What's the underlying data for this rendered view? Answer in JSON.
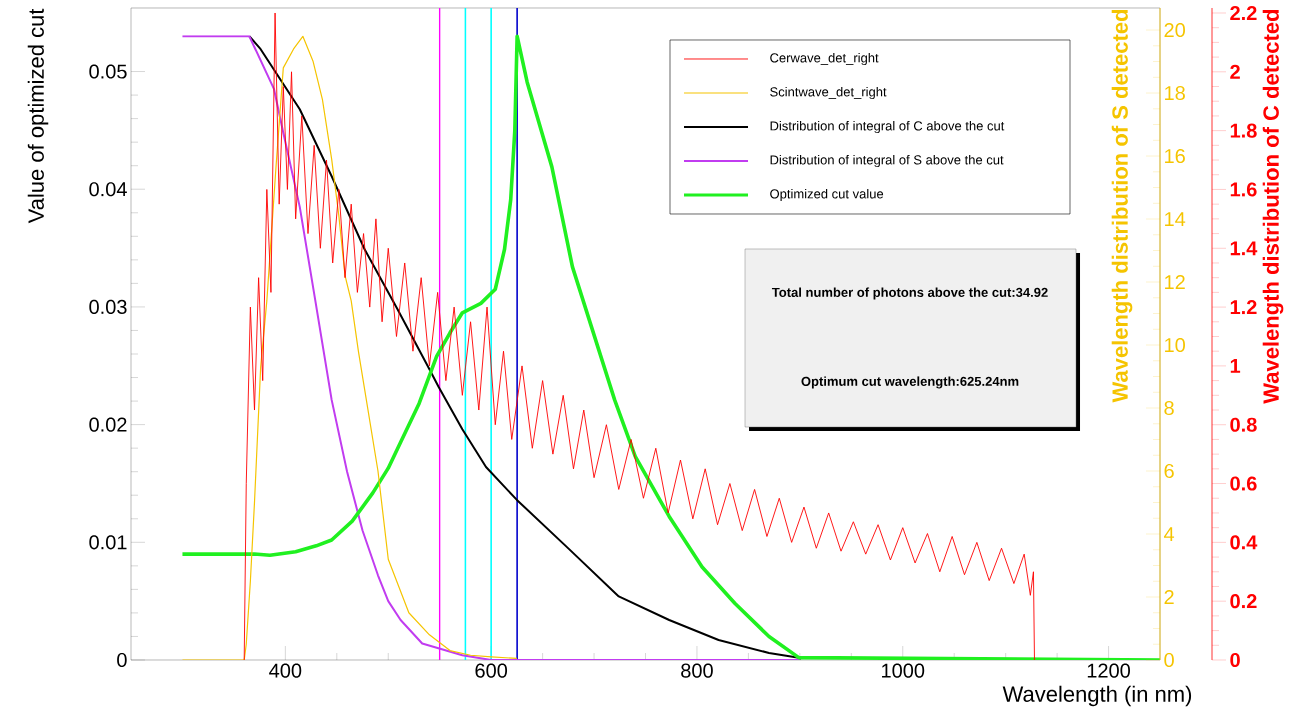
{
  "chart_data": {
    "type": "line",
    "xlabel": "Wavelength (in nm)",
    "ylabel": "Value of optimized cut",
    "y2label": "Wavelength distribution of S detected",
    "y3label": "Wavelength distribution of C detected",
    "xlim": [
      250,
      1250
    ],
    "xticks": [
      400,
      600,
      800,
      1000,
      1200
    ],
    "ylim": [
      0,
      0.0554
    ],
    "yticks": [
      0,
      0.01,
      0.02,
      0.03,
      0.04,
      0.05
    ],
    "y2lim": [
      0,
      20.7
    ],
    "y2ticks": [
      0,
      2,
      4,
      6,
      8,
      10,
      12,
      14,
      16,
      18,
      20
    ],
    "y3lim": [
      0,
      2.217
    ],
    "y3ticks": [
      0,
      0.2,
      0.4,
      0.6,
      0.8,
      1,
      1.2,
      1.4,
      1.6,
      1.8,
      2,
      2.2
    ],
    "legend": "top right",
    "series": [
      {
        "name": "Cerwave_det_right",
        "color": "#ff0000",
        "axis": "y3",
        "x": [
          360,
          362,
          366,
          370,
          374,
          378,
          382,
          386,
          390,
          394,
          398,
          402,
          406,
          410,
          416,
          422,
          428,
          434,
          440,
          446,
          452,
          458,
          464,
          470,
          476,
          482,
          488,
          494,
          500,
          508,
          516,
          524,
          532,
          540,
          548,
          556,
          564,
          572,
          580,
          588,
          596,
          604,
          612,
          620,
          630,
          640,
          650,
          660,
          670,
          680,
          690,
          700,
          712,
          724,
          736,
          748,
          760,
          772,
          784,
          796,
          808,
          820,
          832,
          844,
          856,
          868,
          880,
          892,
          904,
          916,
          928,
          940,
          952,
          964,
          976,
          988,
          1000,
          1012,
          1024,
          1036,
          1048,
          1060,
          1072,
          1084,
          1096,
          1108,
          1118,
          1124,
          1127,
          1128
        ],
        "values": [
          0.0,
          0.6,
          1.2,
          0.85,
          1.3,
          0.95,
          1.6,
          1.25,
          2.2,
          1.55,
          1.95,
          1.6,
          2.0,
          1.5,
          1.85,
          1.45,
          1.75,
          1.4,
          1.7,
          1.35,
          1.6,
          1.3,
          1.55,
          1.25,
          1.45,
          1.2,
          1.5,
          1.15,
          1.4,
          1.1,
          1.35,
          1.05,
          1.3,
          1.0,
          1.25,
          0.95,
          1.2,
          0.9,
          1.15,
          0.85,
          1.2,
          0.8,
          1.05,
          0.75,
          1.0,
          0.72,
          0.95,
          0.7,
          0.9,
          0.65,
          0.85,
          0.62,
          0.8,
          0.58,
          0.75,
          0.55,
          0.72,
          0.5,
          0.68,
          0.48,
          0.65,
          0.46,
          0.6,
          0.44,
          0.58,
          0.42,
          0.55,
          0.4,
          0.52,
          0.38,
          0.5,
          0.37,
          0.47,
          0.36,
          0.46,
          0.34,
          0.45,
          0.33,
          0.43,
          0.3,
          0.42,
          0.29,
          0.4,
          0.27,
          0.38,
          0.26,
          0.36,
          0.22,
          0.3,
          0.0
        ]
      },
      {
        "name": "Scintwave_det_right",
        "color": "#f5c400",
        "axis": "y2",
        "x": [
          300,
          360,
          362,
          366,
          370,
          376,
          382,
          391,
          398,
          408,
          417,
          427,
          436,
          445,
          452,
          458,
          464,
          471,
          477,
          490,
          500,
          520,
          540,
          560,
          580,
          600,
          625
        ],
        "values": [
          0,
          0,
          0.5,
          2.5,
          5,
          9.3,
          11.4,
          15.7,
          18.8,
          19.4,
          19.8,
          19.0,
          17.8,
          15.9,
          14.1,
          12.2,
          11.4,
          9.8,
          8.6,
          6.0,
          3.2,
          1.5,
          0.8,
          0.3,
          0.15,
          0.1,
          0.05
        ]
      },
      {
        "name": "Distribution of integral of C above the cut",
        "color": "#000000",
        "x": [
          365,
          376,
          414,
          445,
          477,
          509,
          540,
          549,
          572,
          595,
          625,
          676,
          724,
          773,
          821,
          870,
          899,
          900
        ],
        "values": [
          0.053,
          0.0519,
          0.0468,
          0.0411,
          0.0349,
          0.0298,
          0.0247,
          0.0232,
          0.0196,
          0.0164,
          0.0136,
          0.0094,
          0.0054,
          0.0034,
          0.0017,
          0.0006,
          0.0002,
          0
        ]
      },
      {
        "name": "Distribution of integral of S above the cut",
        "color": "#c13cf0",
        "x": [
          300,
          365,
          389,
          398,
          414,
          429,
          445,
          460,
          475,
          490,
          500,
          512,
          533,
          572,
          600,
          900
        ],
        "values": [
          0.053,
          0.053,
          0.0485,
          0.0448,
          0.0385,
          0.0306,
          0.0221,
          0.016,
          0.011,
          0.0072,
          0.005,
          0.0034,
          0.0014,
          0.0004,
          0,
          0
        ]
      },
      {
        "name": "Optimized cut value",
        "color": "#20f020",
        "x": [
          300,
          370,
          385,
          410,
          430,
          445,
          465,
          485,
          500,
          512,
          530,
          547,
          560,
          572,
          590,
          604,
          613,
          619,
          623,
          625.24,
          635,
          659,
          679,
          720,
          740,
          773,
          805,
          837,
          870,
          899,
          1250
        ],
        "values": [
          0.009,
          0.009,
          0.0089,
          0.0092,
          0.0097,
          0.0102,
          0.0118,
          0.0142,
          0.0163,
          0.0185,
          0.0218,
          0.0258,
          0.0278,
          0.0295,
          0.0303,
          0.0315,
          0.0349,
          0.0391,
          0.045,
          0.053,
          0.0491,
          0.0419,
          0.0334,
          0.0221,
          0.0173,
          0.0122,
          0.0079,
          0.0048,
          0.002,
          0.0002,
          0
        ]
      }
    ],
    "ref_lines": [
      {
        "axis": "x",
        "value": 550,
        "color": "#ff00ff"
      },
      {
        "axis": "x",
        "value": 575,
        "color": "#00ffff"
      },
      {
        "axis": "x",
        "value": 600,
        "color": "#00ffff"
      },
      {
        "axis": "x",
        "value": 625.24,
        "color": "#0000cc"
      }
    ],
    "annotations": [
      "Total number of photons above the cut:34.92",
      "Optimum cut wavelength:625.24nm"
    ]
  }
}
